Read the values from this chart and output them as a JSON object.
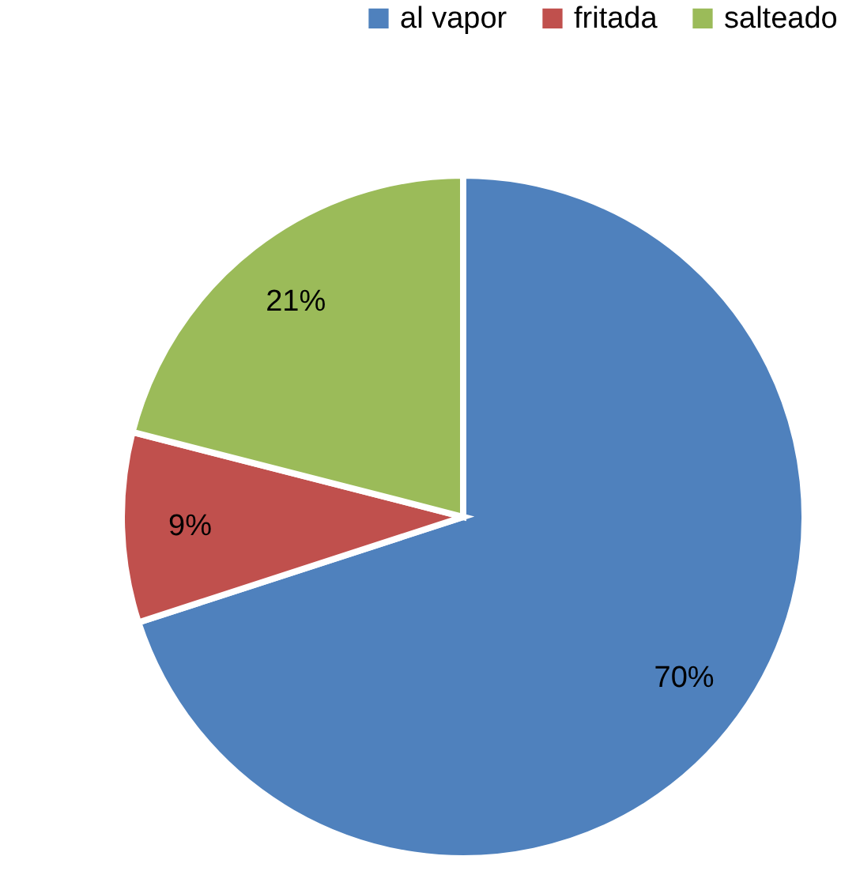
{
  "chart_data": {
    "type": "pie",
    "categories": [
      "al vapor",
      "fritada",
      "salteado"
    ],
    "values": [
      70,
      9,
      21
    ],
    "colors": [
      "#4f81bd",
      "#c0504d",
      "#9bbb59"
    ],
    "value_labels": [
      "70%",
      "9%",
      "21%"
    ],
    "legend": "top right"
  }
}
